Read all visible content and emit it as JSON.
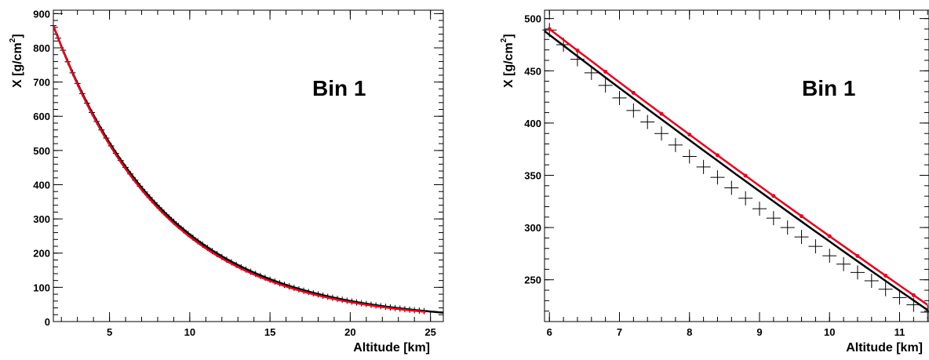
{
  "chart_data": [
    {
      "type": "line",
      "annotation": "Bin 1",
      "xlabel": "Altitude  [km]",
      "ylabel_main": "X  [g/cm",
      "ylabel_sup": "2",
      "ylabel_end": "]",
      "xlim": [
        1.5,
        25.8
      ],
      "ylim": [
        0,
        910
      ],
      "xticks": [
        5,
        10,
        15,
        20,
        25
      ],
      "yticks": [
        0,
        100,
        200,
        300,
        400,
        500,
        600,
        700,
        800,
        900
      ],
      "model": {
        "x0": 1.5,
        "y0": 865,
        "scale_km": 6.9,
        "x_end": 25.8
      },
      "series": [
        {
          "role": "data-points",
          "color": "#000000",
          "x": [
            1.5,
            1.8,
            2.1,
            2.4,
            2.7,
            3.0,
            3.3,
            3.6,
            3.9,
            4.2,
            4.5,
            4.8,
            5.1,
            5.4,
            5.7,
            6.0,
            6.3,
            6.6,
            6.9,
            7.2,
            7.5,
            7.8,
            8.1,
            8.4,
            8.7,
            9.0,
            9.3,
            9.6,
            9.9,
            10.2,
            10.5,
            10.8,
            11.1,
            11.4,
            11.7,
            12.0,
            12.3,
            12.6,
            12.9,
            13.2,
            13.5,
            13.8,
            14.1,
            14.4,
            14.7,
            15.0,
            15.3,
            15.6,
            15.9,
            16.2,
            16.5,
            16.8,
            17.1,
            17.4,
            17.7,
            18.0,
            18.3,
            18.6,
            18.9,
            19.2,
            19.5,
            19.8,
            20.1,
            20.4,
            20.7,
            21.0,
            21.3,
            21.6,
            21.9,
            22.2,
            22.5,
            22.8,
            23.1,
            23.4,
            23.7,
            24.0,
            24.3,
            24.6
          ]
        },
        {
          "role": "fit-red",
          "color": "#e8001c",
          "x_end": 24.8,
          "scale_km": 6.8
        },
        {
          "role": "fit-black",
          "color": "#000000",
          "x_end": 25.8,
          "scale_km": 6.95
        }
      ]
    },
    {
      "type": "line",
      "annotation": "Bin 1",
      "xlabel": "Altitude  [km]",
      "ylabel_main": "X  [g/cm",
      "ylabel_sup": "2",
      "ylabel_end": "]",
      "xlim": [
        5.93,
        11.42
      ],
      "ylim": [
        210,
        508
      ],
      "xticks": [
        6,
        7,
        8,
        9,
        10,
        11
      ],
      "yticks": [
        250,
        300,
        350,
        400,
        450,
        500
      ],
      "series": [
        {
          "role": "data-points",
          "color": "#000000",
          "x": [
            6.0,
            6.2,
            6.4,
            6.6,
            6.8,
            7.0,
            7.2,
            7.4,
            7.6,
            7.8,
            8.0,
            8.2,
            8.4,
            8.6,
            8.8,
            9.0,
            9.2,
            9.4,
            9.6,
            9.8,
            10.0,
            10.2,
            10.4,
            10.6,
            10.8,
            11.0,
            11.2,
            11.4
          ],
          "y": [
            489,
            475,
            461,
            448,
            436,
            424,
            412,
            401,
            390,
            379,
            368,
            358,
            348,
            338,
            328,
            318,
            309,
            300,
            291,
            282,
            273,
            265,
            257,
            249,
            241,
            233,
            226,
            219
          ]
        },
        {
          "role": "fit-red",
          "color": "#e8001c",
          "x0": 6.0,
          "y0": 490,
          "x1": 11.4,
          "y1": 226
        },
        {
          "role": "fit-black",
          "color": "#000000",
          "x0": 5.93,
          "y0": 488,
          "x1": 11.4,
          "y1": 221
        }
      ]
    }
  ]
}
